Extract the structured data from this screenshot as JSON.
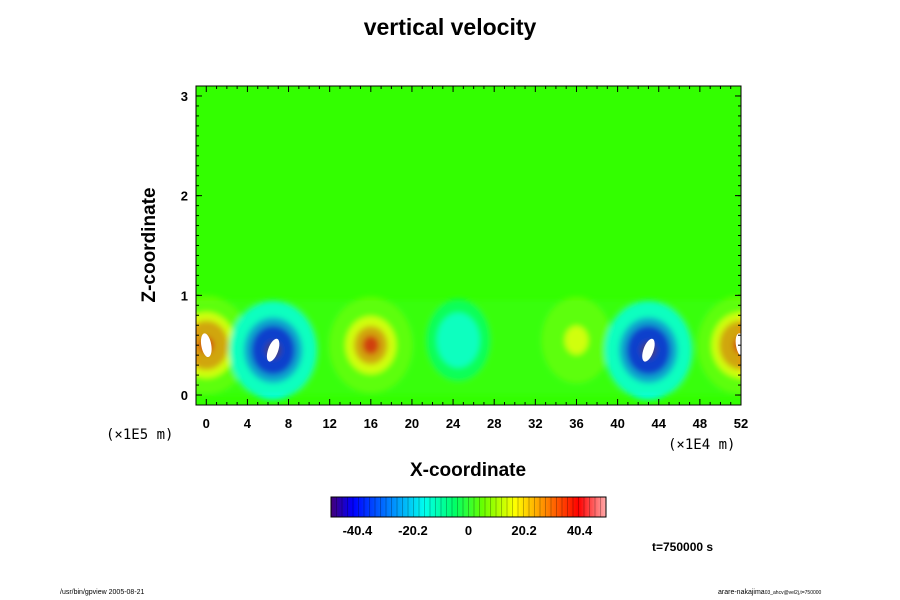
{
  "chart_data": {
    "type": "heatmap",
    "title": "vertical velocity",
    "xlabel": "X-coordinate",
    "ylabel": "Z-coordinate",
    "x_ticks": [
      "0",
      "4",
      "8",
      "12",
      "16",
      "20",
      "24",
      "28",
      "32",
      "36",
      "40",
      "44",
      "48",
      "52"
    ],
    "y_ticks": [
      "0",
      "1",
      "2",
      "3"
    ],
    "x_scale_note": "(×1E4 m)",
    "y_scale_note": "(×1E5 m)",
    "xlim": [
      -1,
      52
    ],
    "ylim": [
      -0.1,
      3.1
    ],
    "colorbar": {
      "tick_labels": [
        "-40.4",
        "-20.2",
        "0",
        "20.2",
        "40.4"
      ],
      "tick_values": [
        -40.4,
        -20.2,
        0,
        20.2,
        40.4
      ],
      "range": [
        -50,
        50
      ]
    },
    "features": [
      {
        "x": 0,
        "z": 0.5,
        "value": 45
      },
      {
        "x": 6.5,
        "z": 0.45,
        "value": -45
      },
      {
        "x": 16,
        "z": 0.5,
        "value": 40
      },
      {
        "x": 24.5,
        "z": 0.55,
        "value": -12
      },
      {
        "x": 36,
        "z": 0.55,
        "value": 20
      },
      {
        "x": 43,
        "z": 0.45,
        "value": -45
      },
      {
        "x": 52,
        "z": 0.5,
        "value": 45
      }
    ]
  },
  "annotations": {
    "time": "t=750000 s"
  },
  "footer": {
    "left": "/usr/bin/gpview 2005-08-21",
    "right": "arare-nakajima",
    "right_small": "03_ahcv@vel2j,t=750000"
  },
  "colors": {
    "background_field": "#33ff00",
    "positive_peak": "#ff0000",
    "negative_peak": "#0000cc",
    "extreme": "#ffffff"
  }
}
